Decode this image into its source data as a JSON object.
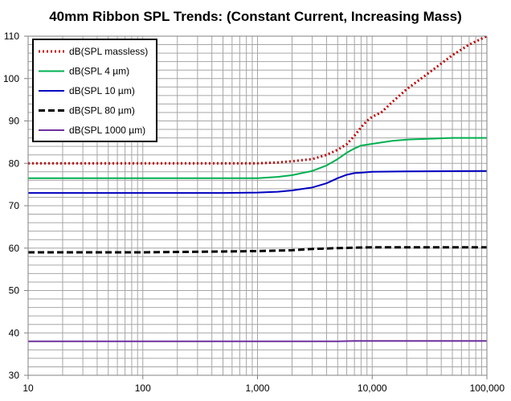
{
  "chart_data": {
    "type": "line",
    "title": "40mm Ribbon SPL Trends: (Constant Current, Increasing Mass)",
    "xlabel": "",
    "ylabel": "",
    "x_scale": "log",
    "xlim": [
      10,
      100000
    ],
    "ylim": [
      30,
      110
    ],
    "x_ticks": [
      "10",
      "100",
      "1,000",
      "10,000",
      "100,000"
    ],
    "y_ticks": [
      "30",
      "40",
      "50",
      "60",
      "70",
      "80",
      "90",
      "100",
      "110"
    ],
    "grid": true,
    "legend_position": "top-left",
    "series": [
      {
        "name": "dB(SPL massless)",
        "color": "#c00000",
        "style": "dotted",
        "x": [
          10,
          100,
          1000,
          1500,
          2000,
          3000,
          4000,
          5000,
          6000,
          7000,
          8000,
          9000,
          10000,
          12000,
          15000,
          20000,
          30000,
          50000,
          70000,
          100000
        ],
        "y": [
          80,
          80,
          80,
          80.2,
          80.5,
          81,
          82,
          83.2,
          84.5,
          86.5,
          88.5,
          90,
          91,
          92,
          94.5,
          97.5,
          101,
          105.5,
          108,
          110
        ]
      },
      {
        "name": "dB(SPL 4 µm)",
        "color": "#00b050",
        "style": "solid",
        "x": [
          10,
          100,
          1000,
          1500,
          2000,
          3000,
          4000,
          5000,
          6000,
          7000,
          8000,
          10000,
          15000,
          20000,
          50000,
          100000
        ],
        "y": [
          76.5,
          76.5,
          76.5,
          76.8,
          77.2,
          78.2,
          79.5,
          81,
          82.5,
          83.5,
          84.2,
          84.6,
          85.3,
          85.6,
          86,
          86
        ]
      },
      {
        "name": "dB(SPL 10 µm)",
        "color": "#0000c0",
        "style": "solid",
        "x": [
          10,
          100,
          500,
          1000,
          1500,
          2000,
          3000,
          4000,
          5000,
          6000,
          7000,
          8000,
          10000,
          20000,
          100000
        ],
        "y": [
          73,
          73,
          73,
          73.1,
          73.3,
          73.6,
          74.3,
          75.3,
          76.5,
          77.3,
          77.7,
          77.8,
          78,
          78.1,
          78.2
        ]
      },
      {
        "name": "dB(SPL 80 µm)",
        "color": "#000000",
        "style": "dashed",
        "x": [
          10,
          100,
          500,
          1000,
          2000,
          3000,
          5000,
          7000,
          10000,
          100000
        ],
        "y": [
          59,
          59,
          59.2,
          59.3,
          59.5,
          59.8,
          60,
          60.1,
          60.2,
          60.2
        ]
      },
      {
        "name": "dB(SPL 1000 µm)",
        "color": "#7030a0",
        "style": "solid",
        "x": [
          10,
          100,
          1000,
          5000,
          7000,
          100000
        ],
        "y": [
          38,
          38,
          38,
          38,
          38.1,
          38.1
        ]
      }
    ]
  }
}
